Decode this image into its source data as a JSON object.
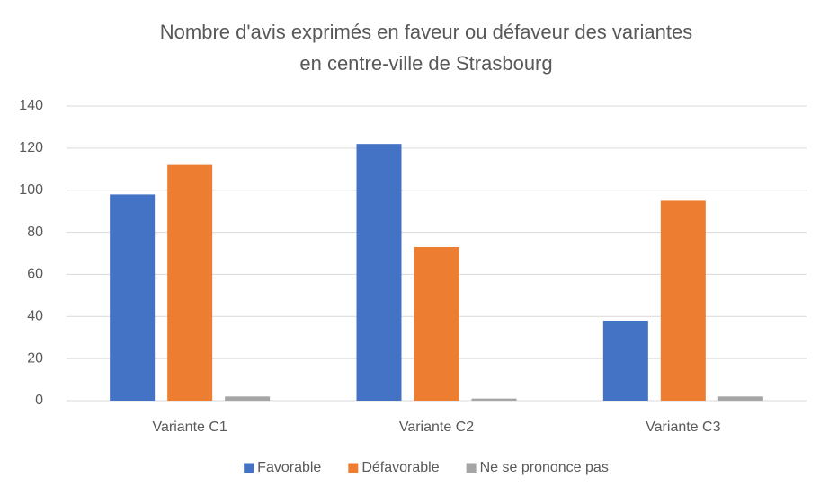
{
  "chart_data": {
    "type": "bar",
    "title": [
      "Nombre d'avis exprimés en faveur ou défaveur des variantes",
      "en centre-ville de Strasbourg"
    ],
    "categories": [
      "Variante C1",
      "Variante C2",
      "Variante C3"
    ],
    "series": [
      {
        "name": "Favorable",
        "color": "#4472c4",
        "values": [
          98,
          122,
          38
        ]
      },
      {
        "name": "Défavorable",
        "color": "#ed7d31",
        "values": [
          112,
          73,
          95
        ]
      },
      {
        "name": "Ne se prononce pas",
        "color": "#a5a5a5",
        "values": [
          2,
          1,
          2
        ]
      }
    ],
    "ylim": [
      0,
      140
    ],
    "yticks": [
      0,
      20,
      40,
      60,
      80,
      100,
      120,
      140
    ],
    "grid": true,
    "legend": "bottom"
  }
}
